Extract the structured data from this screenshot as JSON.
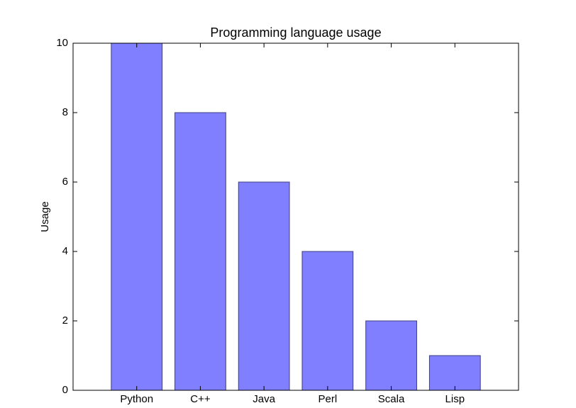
{
  "chart_data": {
    "type": "bar",
    "title": "Programming language usage",
    "y_label": "Usage",
    "categories": [
      "Python",
      "C++",
      "Java",
      "Perl",
      "Scala",
      "Lisp"
    ],
    "values": [
      10,
      8,
      6,
      4,
      2,
      1
    ],
    "color": "#7f7fff",
    "ylim": [
      0,
      10
    ],
    "yticks": [
      0,
      2,
      4,
      6,
      8,
      10
    ],
    "grid": false
  }
}
